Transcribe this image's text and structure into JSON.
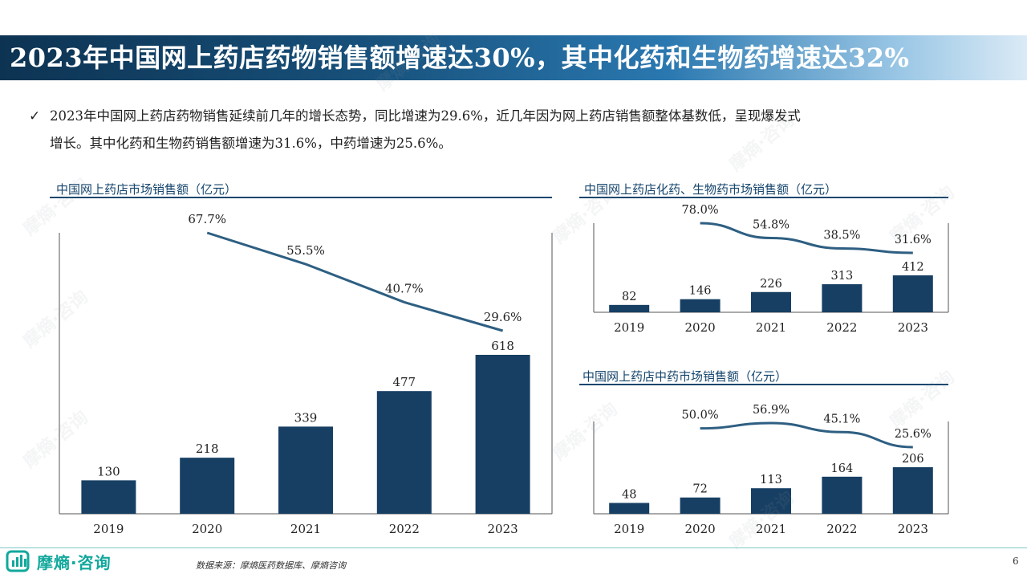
{
  "title": "2023年中国网上药店药物销售额增速达30%，其中化药和生物药增速达32%",
  "bullet": {
    "line1": "2023年中国网上药店药物销售延续前几年的增长态势，同比增速为29.6%，近几年因为网上药店销售额整体基数低，呈现爆发式",
    "line2": "增长。其中化药和生物药销售额增速为31.6%，中药增速为25.6%。"
  },
  "chart_data": [
    {
      "type": "bar",
      "title": "中国网上药店市场销售额（亿元）",
      "categories": [
        "2019",
        "2020",
        "2021",
        "2022",
        "2023"
      ],
      "values": [
        130,
        218,
        339,
        477,
        618
      ],
      "growth_line": {
        "categories": [
          "2020",
          "2021",
          "2022",
          "2023"
        ],
        "values": [
          "67.7%",
          "55.5%",
          "40.7%",
          "29.6%"
        ],
        "numeric": [
          67.7,
          55.5,
          40.7,
          29.6
        ]
      },
      "bar_color": "#173f63"
    },
    {
      "type": "bar",
      "title": "中国网上药店化药、生物药市场销售额（亿元）",
      "categories": [
        "2019",
        "2020",
        "2021",
        "2022",
        "2023"
      ],
      "values": [
        82,
        146,
        226,
        313,
        412
      ],
      "growth_line": {
        "categories": [
          "2020",
          "2021",
          "2022",
          "2023"
        ],
        "values": [
          "78.0%",
          "54.8%",
          "38.5%",
          "31.6%"
        ],
        "numeric": [
          78.0,
          54.8,
          38.5,
          31.6
        ]
      },
      "bar_color": "#173f63"
    },
    {
      "type": "bar",
      "title": "中国网上药店中药市场销售额（亿元）",
      "categories": [
        "2019",
        "2020",
        "2021",
        "2022",
        "2023"
      ],
      "values": [
        48,
        72,
        113,
        164,
        206
      ],
      "growth_line": {
        "categories": [
          "2020",
          "2021",
          "2022",
          "2023"
        ],
        "values": [
          "50.0%",
          "56.9%",
          "45.1%",
          "25.6%"
        ],
        "numeric": [
          50.0,
          56.9,
          45.1,
          25.6
        ]
      },
      "bar_color": "#173f63"
    }
  ],
  "footer": {
    "logo_text": "摩熵·咨询",
    "source": "数据来源：摩熵医药数据库、摩熵咨询",
    "page_number": "6"
  },
  "watermark_text": "摩熵·咨询",
  "colors": {
    "primary": "#173f63",
    "line": "#2e5f82",
    "accent": "#12a89c"
  }
}
